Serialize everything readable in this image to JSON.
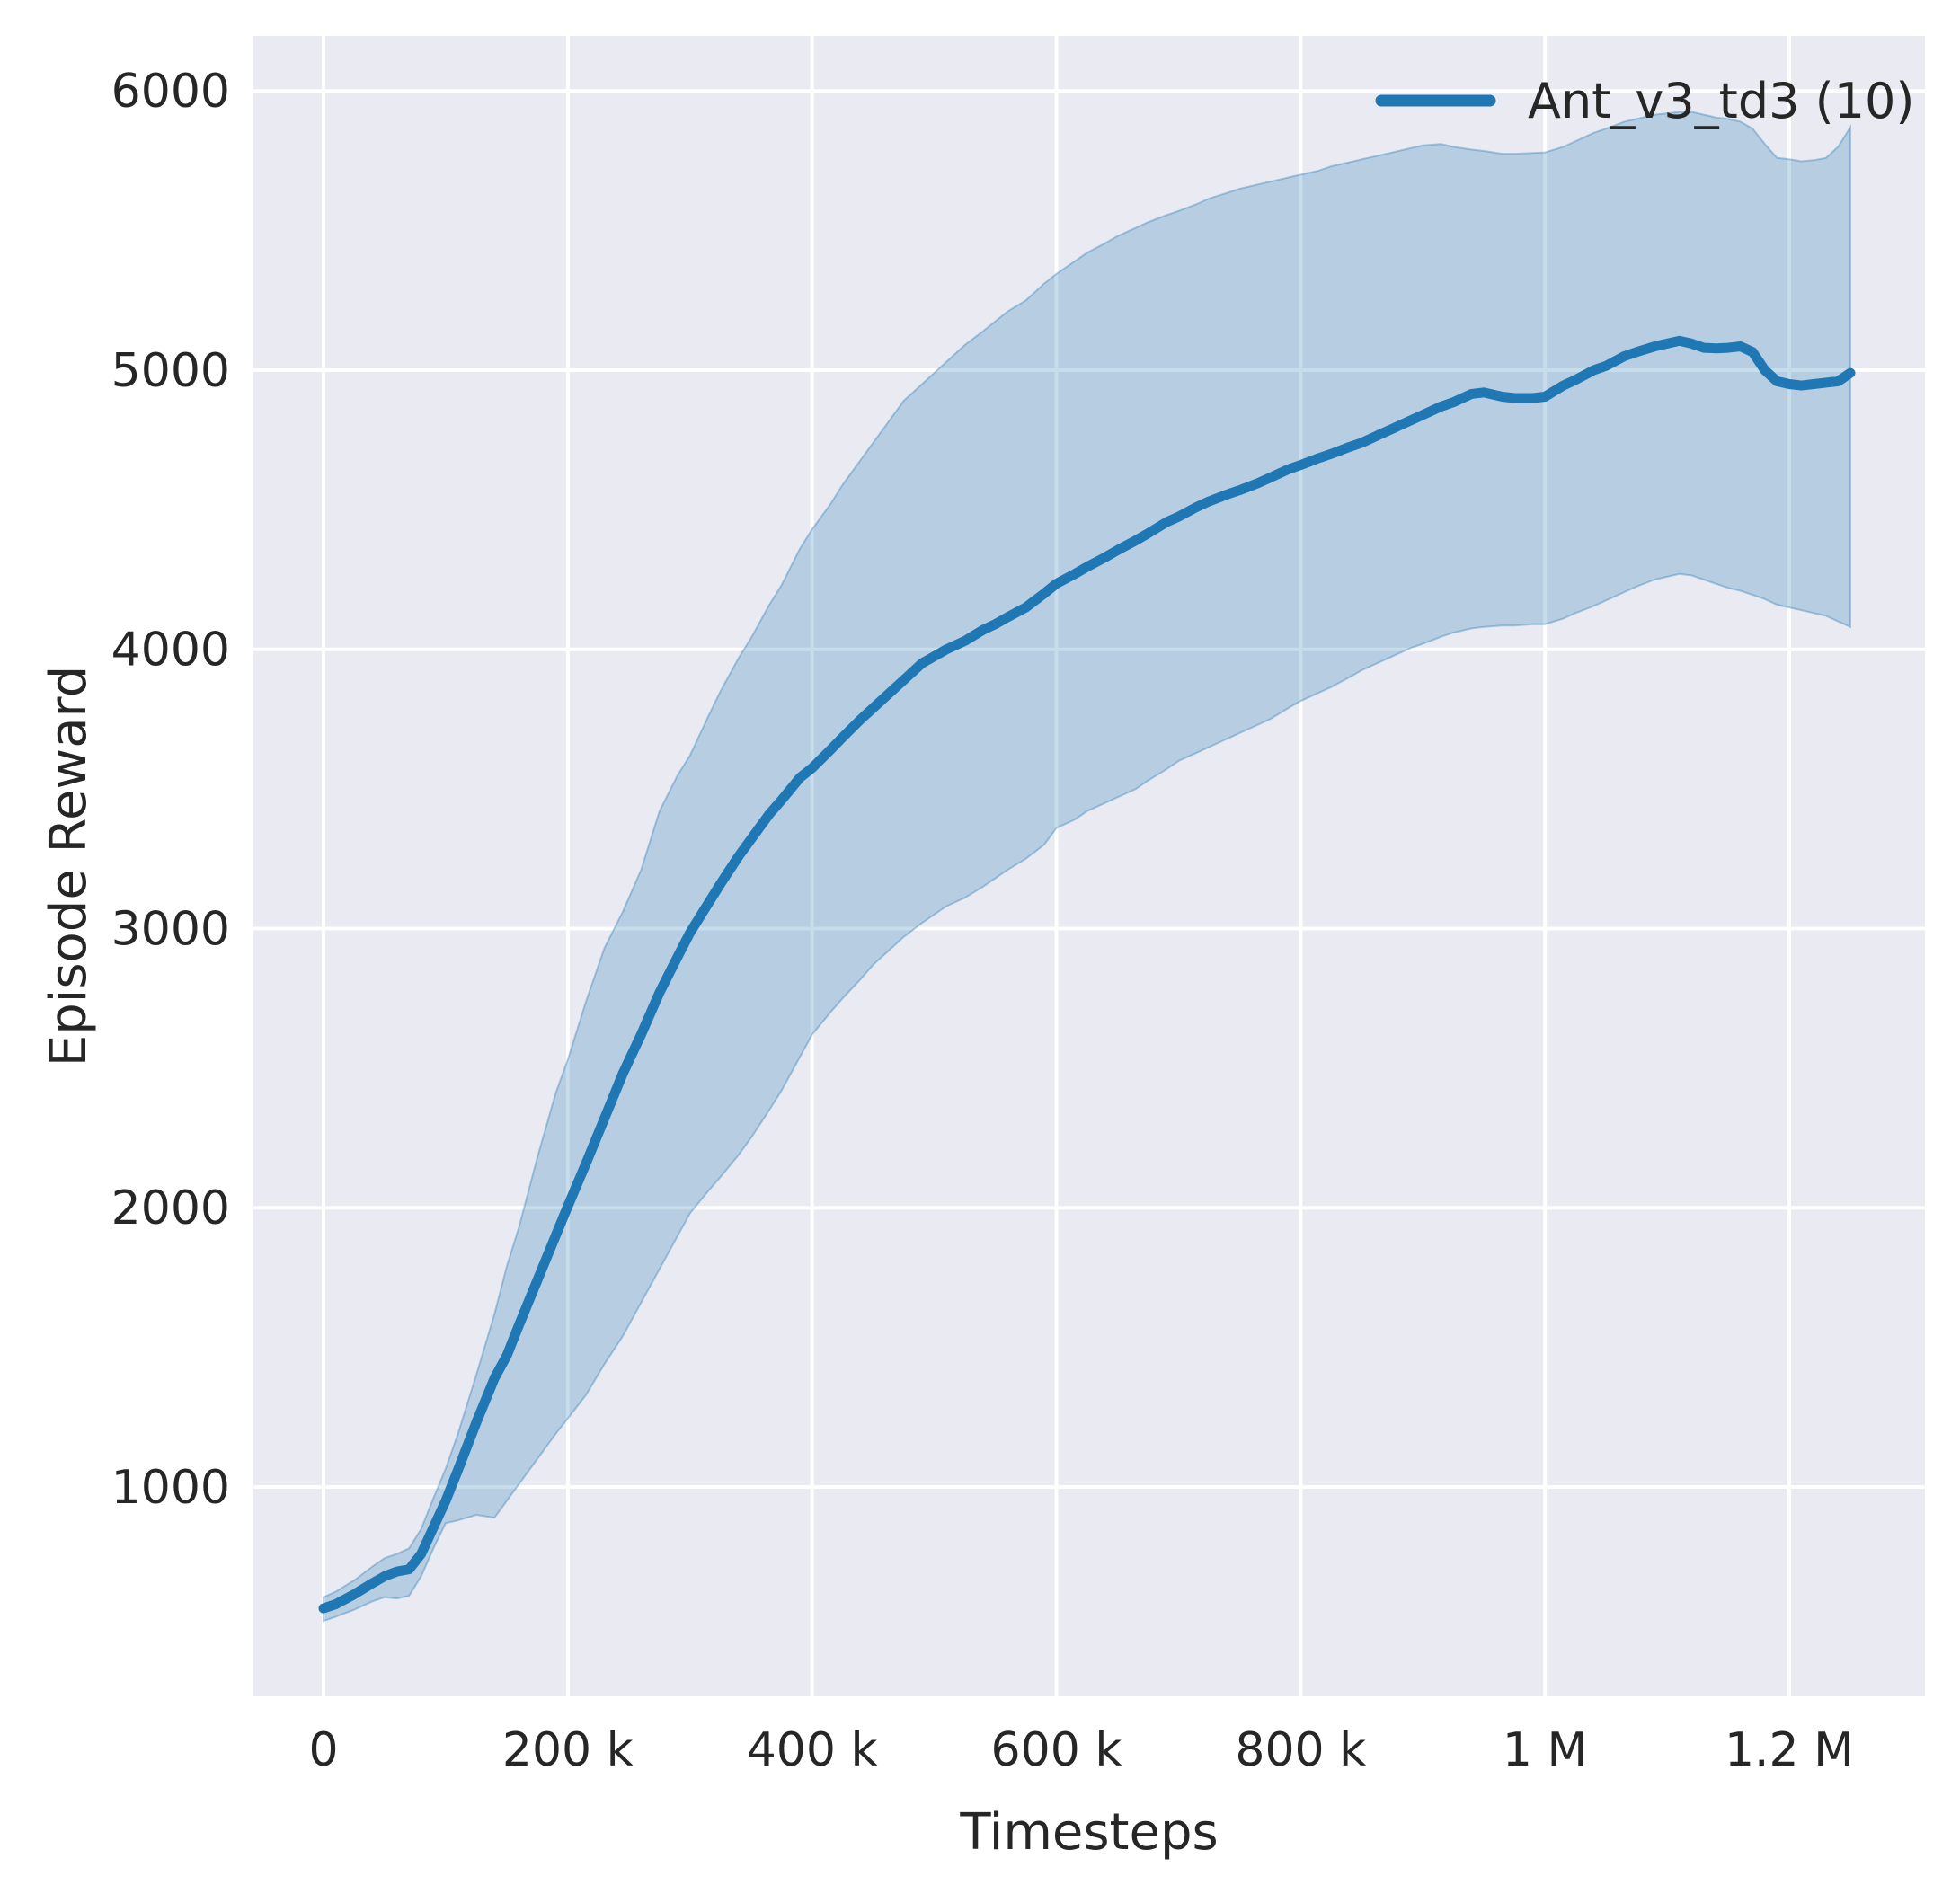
{
  "chart_data": {
    "type": "line",
    "title": "",
    "xlabel": "Timesteps",
    "ylabel": "Episode Reward",
    "grid": true,
    "legend_position": "upper right",
    "legend": [
      {
        "label": "Ant_v3_td3 (10)",
        "color": "#1f77b4"
      }
    ],
    "colors": {
      "figure_background": "#ffffff",
      "axes_background": "#eaeaf2",
      "gridline": "#ffffff",
      "line": "#1f77b4",
      "band_fill": "#1f77b4",
      "band_opacity": 0.25,
      "text": "#262626"
    },
    "xlim": [
      -57400,
      1311100
    ],
    "ylim": [
      250,
      6197
    ],
    "x_ticks": {
      "values": [
        0,
        200000,
        400000,
        600000,
        800000,
        1000000,
        1200000
      ],
      "labels": [
        "0",
        "200 k",
        "400 k",
        "600 k",
        "800 k",
        "1 M",
        "1.2 M"
      ]
    },
    "y_ticks": {
      "values": [
        1000,
        2000,
        3000,
        4000,
        5000,
        6000
      ],
      "labels": [
        "1000",
        "2000",
        "3000",
        "4000",
        "5000",
        "6000"
      ]
    },
    "series": [
      {
        "name": "Ant_v3_td3 (10)",
        "x": [
          0,
          10000,
          25000,
          40000,
          50000,
          60000,
          70000,
          80000,
          90000,
          100000,
          110000,
          125000,
          140000,
          150000,
          160000,
          175000,
          190000,
          200000,
          215000,
          230000,
          245000,
          260000,
          275000,
          290000,
          300000,
          315000,
          325000,
          340000,
          350000,
          365000,
          375000,
          390000,
          400000,
          415000,
          425000,
          440000,
          450000,
          465000,
          475000,
          490000,
          500000,
          510000,
          525000,
          540000,
          550000,
          560000,
          575000,
          590000,
          600000,
          615000,
          625000,
          640000,
          650000,
          665000,
          675000,
          690000,
          700000,
          715000,
          725000,
          740000,
          750000,
          765000,
          775000,
          790000,
          800000,
          815000,
          825000,
          840000,
          850000,
          865000,
          875000,
          890000,
          900000,
          915000,
          925000,
          940000,
          950000,
          965000,
          975000,
          990000,
          1000000,
          1015000,
          1025000,
          1040000,
          1050000,
          1065000,
          1075000,
          1090000,
          1100000,
          1110000,
          1120000,
          1130000,
          1140000,
          1150000,
          1160000,
          1170000,
          1180000,
          1190000,
          1200000,
          1210000,
          1220000,
          1230000,
          1240000,
          1250000
        ],
        "mean": [
          565,
          580,
          615,
          655,
          680,
          697,
          705,
          760,
          855,
          950,
          1060,
          1230,
          1390,
          1470,
          1580,
          1740,
          1900,
          2005,
          2160,
          2320,
          2480,
          2620,
          2770,
          2900,
          2985,
          3090,
          3160,
          3260,
          3320,
          3410,
          3460,
          3540,
          3575,
          3640,
          3685,
          3750,
          3790,
          3850,
          3890,
          3950,
          3975,
          4000,
          4030,
          4070,
          4090,
          4115,
          4150,
          4200,
          4235,
          4270,
          4295,
          4330,
          4355,
          4390,
          4415,
          4455,
          4475,
          4510,
          4530,
          4555,
          4570,
          4595,
          4615,
          4645,
          4660,
          4685,
          4700,
          4725,
          4740,
          4770,
          4790,
          4820,
          4840,
          4870,
          4885,
          4915,
          4920,
          4905,
          4900,
          4900,
          4905,
          4945,
          4965,
          5000,
          5015,
          5050,
          5065,
          5085,
          5095,
          5105,
          5095,
          5080,
          5078,
          5080,
          5085,
          5065,
          5000,
          4960,
          4950,
          4945,
          4950,
          4955,
          4960,
          4990
        ],
        "lower": [
          520,
          535,
          560,
          590,
          605,
          600,
          610,
          680,
          780,
          870,
          880,
          900,
          890,
          950,
          1010,
          1100,
          1190,
          1245,
          1330,
          1440,
          1540,
          1660,
          1780,
          1900,
          1980,
          2060,
          2110,
          2190,
          2250,
          2350,
          2420,
          2540,
          2620,
          2700,
          2750,
          2820,
          2870,
          2930,
          2970,
          3020,
          3050,
          3080,
          3110,
          3150,
          3180,
          3210,
          3250,
          3300,
          3360,
          3390,
          3420,
          3450,
          3470,
          3500,
          3530,
          3570,
          3600,
          3630,
          3650,
          3680,
          3700,
          3730,
          3750,
          3790,
          3815,
          3845,
          3865,
          3900,
          3925,
          3955,
          3975,
          4005,
          4020,
          4045,
          4060,
          4075,
          4080,
          4085,
          4085,
          4090,
          4090,
          4110,
          4130,
          4155,
          4175,
          4205,
          4225,
          4250,
          4260,
          4270,
          4265,
          4250,
          4235,
          4220,
          4210,
          4195,
          4180,
          4160,
          4150,
          4140,
          4130,
          4120,
          4100,
          4080
        ],
        "upper": [
          605,
          625,
          665,
          715,
          745,
          760,
          780,
          850,
          960,
          1065,
          1190,
          1400,
          1620,
          1790,
          1930,
          2180,
          2410,
          2530,
          2740,
          2930,
          3060,
          3210,
          3420,
          3550,
          3620,
          3760,
          3850,
          3970,
          4040,
          4160,
          4230,
          4360,
          4430,
          4520,
          4590,
          4680,
          4740,
          4830,
          4890,
          4950,
          4990,
          5030,
          5090,
          5140,
          5175,
          5210,
          5250,
          5310,
          5345,
          5390,
          5420,
          5455,
          5480,
          5510,
          5530,
          5555,
          5570,
          5595,
          5615,
          5635,
          5650,
          5665,
          5675,
          5690,
          5700,
          5715,
          5730,
          5745,
          5755,
          5770,
          5780,
          5795,
          5805,
          5810,
          5800,
          5790,
          5785,
          5775,
          5775,
          5778,
          5780,
          5800,
          5820,
          5850,
          5865,
          5890,
          5900,
          5915,
          5920,
          5925,
          5925,
          5915,
          5905,
          5900,
          5890,
          5865,
          5810,
          5760,
          5755,
          5748,
          5752,
          5760,
          5800,
          5870
        ]
      }
    ]
  }
}
